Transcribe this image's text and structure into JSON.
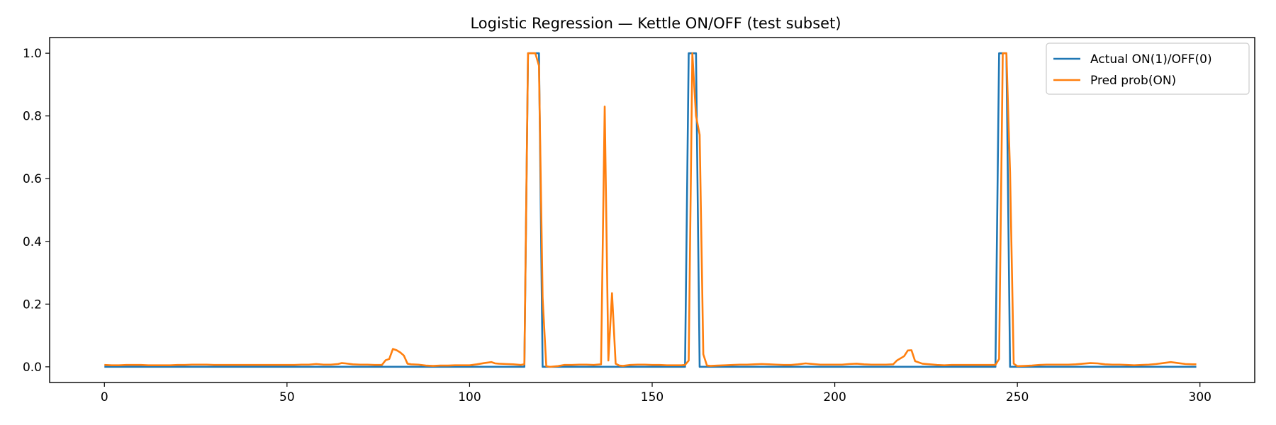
{
  "chart_data": {
    "type": "line",
    "title": "Logistic Regression — Kettle ON/OFF (test subset)",
    "xlabel": "",
    "ylabel": "",
    "xlim": [
      -15,
      315
    ],
    "ylim": [
      -0.05,
      1.05
    ],
    "x_ticks": [
      0,
      50,
      100,
      150,
      200,
      250,
      300
    ],
    "y_ticks": [
      0.0,
      0.2,
      0.4,
      0.6,
      0.8,
      1.0
    ],
    "x_tick_labels": [
      "0",
      "50",
      "100",
      "150",
      "200",
      "250",
      "300"
    ],
    "y_tick_labels": [
      "0.0",
      "0.2",
      "0.4",
      "0.6",
      "0.8",
      "1.0"
    ],
    "grid": false,
    "legend_position": "top-right",
    "series": [
      {
        "name": "Actual ON(1)/OFF(0)",
        "color": "#1f77b4",
        "points": [
          [
            0,
            0
          ],
          [
            115,
            0
          ],
          [
            116,
            1
          ],
          [
            119,
            1
          ],
          [
            120,
            0
          ],
          [
            159,
            0
          ],
          [
            160,
            1
          ],
          [
            162,
            1
          ],
          [
            163,
            0
          ],
          [
            244,
            0
          ],
          [
            245,
            1
          ],
          [
            247,
            1
          ],
          [
            248,
            0
          ],
          [
            299,
            0
          ]
        ]
      },
      {
        "name": "Pred prob(ON)",
        "color": "#ff7f0e",
        "points": [
          [
            0,
            0.006
          ],
          [
            2,
            0.005
          ],
          [
            4,
            0.005
          ],
          [
            6,
            0.006
          ],
          [
            8,
            0.006
          ],
          [
            10,
            0.006
          ],
          [
            12,
            0.005
          ],
          [
            14,
            0.005
          ],
          [
            16,
            0.005
          ],
          [
            18,
            0.005
          ],
          [
            20,
            0.006
          ],
          [
            22,
            0.006
          ],
          [
            24,
            0.007
          ],
          [
            26,
            0.007
          ],
          [
            28,
            0.007
          ],
          [
            30,
            0.006
          ],
          [
            32,
            0.006
          ],
          [
            34,
            0.006
          ],
          [
            36,
            0.006
          ],
          [
            38,
            0.006
          ],
          [
            40,
            0.006
          ],
          [
            42,
            0.006
          ],
          [
            44,
            0.006
          ],
          [
            46,
            0.006
          ],
          [
            48,
            0.006
          ],
          [
            50,
            0.006
          ],
          [
            52,
            0.006
          ],
          [
            54,
            0.007
          ],
          [
            56,
            0.007
          ],
          [
            58,
            0.009
          ],
          [
            60,
            0.007
          ],
          [
            62,
            0.007
          ],
          [
            64,
            0.009
          ],
          [
            65,
            0.012
          ],
          [
            66,
            0.011
          ],
          [
            68,
            0.008
          ],
          [
            70,
            0.007
          ],
          [
            72,
            0.007
          ],
          [
            74,
            0.006
          ],
          [
            76,
            0.006
          ],
          [
            77,
            0.021
          ],
          [
            78,
            0.025
          ],
          [
            79,
            0.057
          ],
          [
            80,
            0.053
          ],
          [
            81,
            0.046
          ],
          [
            82,
            0.036
          ],
          [
            83,
            0.01
          ],
          [
            84,
            0.008
          ],
          [
            86,
            0.007
          ],
          [
            88,
            0.004
          ],
          [
            90,
            0.003
          ],
          [
            92,
            0.004
          ],
          [
            94,
            0.004
          ],
          [
            96,
            0.005
          ],
          [
            98,
            0.005
          ],
          [
            100,
            0.005
          ],
          [
            102,
            0.008
          ],
          [
            104,
            0.012
          ],
          [
            106,
            0.015
          ],
          [
            107,
            0.011
          ],
          [
            108,
            0.01
          ],
          [
            110,
            0.009
          ],
          [
            112,
            0.008
          ],
          [
            114,
            0.006
          ],
          [
            115,
            0.008
          ],
          [
            116,
            1.0
          ],
          [
            118,
            1.0
          ],
          [
            119,
            0.96
          ],
          [
            120,
            0.22
          ],
          [
            121,
            0.002
          ],
          [
            122,
            0.0
          ],
          [
            124,
            0.002
          ],
          [
            126,
            0.006
          ],
          [
            128,
            0.006
          ],
          [
            130,
            0.007
          ],
          [
            132,
            0.007
          ],
          [
            134,
            0.006
          ],
          [
            136,
            0.008
          ],
          [
            137,
            0.83
          ],
          [
            138,
            0.02
          ],
          [
            139,
            0.235
          ],
          [
            140,
            0.01
          ],
          [
            141,
            0.004
          ],
          [
            142,
            0.003
          ],
          [
            144,
            0.006
          ],
          [
            146,
            0.007
          ],
          [
            148,
            0.007
          ],
          [
            150,
            0.006
          ],
          [
            152,
            0.006
          ],
          [
            154,
            0.005
          ],
          [
            156,
            0.005
          ],
          [
            158,
            0.005
          ],
          [
            159,
            0.006
          ],
          [
            160,
            0.02
          ],
          [
            161,
            1.0
          ],
          [
            162,
            0.8
          ],
          [
            163,
            0.74
          ],
          [
            164,
            0.04
          ],
          [
            165,
            0.004
          ],
          [
            166,
            0.003
          ],
          [
            168,
            0.004
          ],
          [
            170,
            0.005
          ],
          [
            172,
            0.006
          ],
          [
            174,
            0.007
          ],
          [
            176,
            0.007
          ],
          [
            178,
            0.008
          ],
          [
            180,
            0.009
          ],
          [
            182,
            0.008
          ],
          [
            184,
            0.007
          ],
          [
            186,
            0.006
          ],
          [
            188,
            0.006
          ],
          [
            190,
            0.008
          ],
          [
            192,
            0.011
          ],
          [
            194,
            0.009
          ],
          [
            196,
            0.007
          ],
          [
            198,
            0.007
          ],
          [
            200,
            0.007
          ],
          [
            202,
            0.007
          ],
          [
            204,
            0.009
          ],
          [
            206,
            0.01
          ],
          [
            208,
            0.008
          ],
          [
            210,
            0.007
          ],
          [
            212,
            0.007
          ],
          [
            214,
            0.007
          ],
          [
            216,
            0.008
          ],
          [
            217,
            0.02
          ],
          [
            219,
            0.034
          ],
          [
            220,
            0.052
          ],
          [
            221,
            0.053
          ],
          [
            222,
            0.018
          ],
          [
            224,
            0.01
          ],
          [
            226,
            0.008
          ],
          [
            228,
            0.006
          ],
          [
            230,
            0.005
          ],
          [
            232,
            0.006
          ],
          [
            234,
            0.006
          ],
          [
            236,
            0.006
          ],
          [
            238,
            0.006
          ],
          [
            240,
            0.006
          ],
          [
            242,
            0.006
          ],
          [
            244,
            0.006
          ],
          [
            245,
            0.025
          ],
          [
            246,
            1.0
          ],
          [
            247,
            1.0
          ],
          [
            248,
            0.62
          ],
          [
            249,
            0.01
          ],
          [
            250,
            0.002
          ],
          [
            252,
            0.003
          ],
          [
            254,
            0.004
          ],
          [
            256,
            0.006
          ],
          [
            258,
            0.007
          ],
          [
            260,
            0.007
          ],
          [
            262,
            0.007
          ],
          [
            264,
            0.007
          ],
          [
            266,
            0.008
          ],
          [
            268,
            0.01
          ],
          [
            270,
            0.012
          ],
          [
            272,
            0.011
          ],
          [
            274,
            0.008
          ],
          [
            276,
            0.007
          ],
          [
            278,
            0.007
          ],
          [
            280,
            0.006
          ],
          [
            282,
            0.005
          ],
          [
            284,
            0.006
          ],
          [
            286,
            0.007
          ],
          [
            288,
            0.009
          ],
          [
            290,
            0.012
          ],
          [
            292,
            0.015
          ],
          [
            294,
            0.012
          ],
          [
            296,
            0.009
          ],
          [
            298,
            0.008
          ],
          [
            299,
            0.008
          ]
        ]
      }
    ]
  }
}
